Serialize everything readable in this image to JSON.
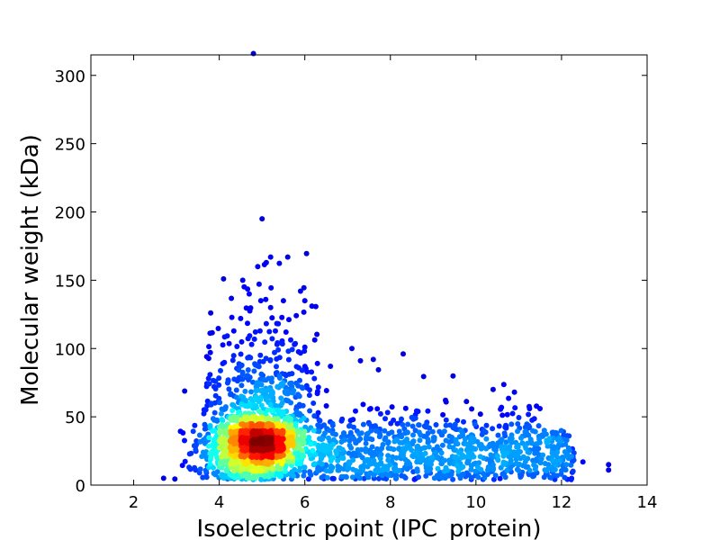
{
  "chart_data": {
    "type": "scatter",
    "title": "",
    "xlabel": "Isoelectric point (IPC_protein)",
    "ylabel": "Molecular weight (kDa)",
    "xlim": [
      1,
      14
    ],
    "ylim": [
      0,
      315
    ],
    "xticks": [
      2,
      4,
      6,
      8,
      10,
      12,
      14
    ],
    "yticks": [
      0,
      50,
      100,
      150,
      200,
      250,
      300
    ],
    "xtick_labels": [
      "2",
      "4",
      "6",
      "8",
      "10",
      "12",
      "14"
    ],
    "ytick_labels": [
      "0",
      "50",
      "100",
      "150",
      "200",
      "250",
      "300"
    ],
    "grid": false,
    "legend": "none",
    "colormap": "jet (point density)",
    "colors": {
      "low_density": "#00008f",
      "high_density": "#800000"
    },
    "density_peak": {
      "x": 4.9,
      "y": 28
    },
    "notable_points": [
      {
        "x": 4.8,
        "y": 316
      },
      {
        "x": 5.0,
        "y": 195
      },
      {
        "x": 5.2,
        "y": 167
      },
      {
        "x": 5.6,
        "y": 167
      },
      {
        "x": 5.1,
        "y": 163
      },
      {
        "x": 4.9,
        "y": 160
      },
      {
        "x": 4.1,
        "y": 151
      },
      {
        "x": 5.9,
        "y": 142
      },
      {
        "x": 4.7,
        "y": 140
      },
      {
        "x": 6.0,
        "y": 135
      },
      {
        "x": 5.5,
        "y": 135
      },
      {
        "x": 5.2,
        "y": 130
      },
      {
        "x": 3.8,
        "y": 126
      },
      {
        "x": 5.8,
        "y": 124
      },
      {
        "x": 4.5,
        "y": 122
      },
      {
        "x": 6.0,
        "y": 101
      },
      {
        "x": 7.1,
        "y": 100
      },
      {
        "x": 8.3,
        "y": 96
      },
      {
        "x": 7.6,
        "y": 92
      },
      {
        "x": 7.3,
        "y": 91
      },
      {
        "x": 6.6,
        "y": 87
      },
      {
        "x": 10.4,
        "y": 70
      },
      {
        "x": 10.9,
        "y": 68
      },
      {
        "x": 2.7,
        "y": 5
      },
      {
        "x": 13.1,
        "y": 15
      },
      {
        "x": 13.1,
        "y": 11
      },
      {
        "x": 12.5,
        "y": 17
      }
    ]
  }
}
